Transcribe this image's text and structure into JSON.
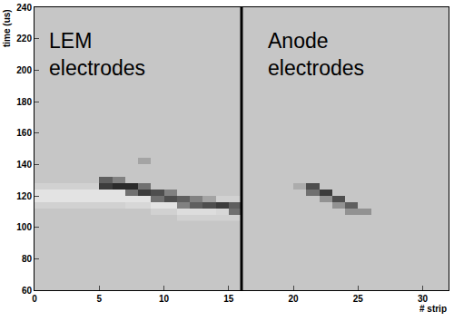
{
  "chart_data": {
    "type": "heatmap",
    "xlabel": "# strip",
    "ylabel": "time (us)",
    "xlim": [
      0,
      32
    ],
    "xticks": [
      0,
      5,
      10,
      15,
      20,
      25,
      30
    ],
    "ylim": [
      60,
      240
    ],
    "yticks": [
      60,
      80,
      100,
      120,
      140,
      160,
      180,
      200,
      220,
      240
    ],
    "zlim": [
      -1,
      1
    ],
    "xbins": [
      0,
      1,
      2,
      3,
      4,
      5,
      6,
      7,
      8,
      9,
      10,
      11,
      12,
      13,
      14,
      15,
      16,
      17,
      18,
      19,
      20,
      21,
      22,
      23,
      24,
      25,
      26,
      27,
      28,
      29,
      30,
      31,
      32
    ],
    "ybins": [
      104,
      108,
      112,
      116,
      120,
      124,
      128,
      132,
      136,
      140,
      144,
      148
    ],
    "cells": [
      [
        0,
        0,
        0,
        0,
        0,
        0,
        0,
        0,
        0,
        0,
        0,
        -0.2,
        -0.2,
        -0.2,
        -0.2,
        -0.2,
        0,
        0,
        0,
        0,
        0,
        0,
        0,
        0,
        0,
        0,
        0,
        0,
        0,
        0,
        0,
        0
      ],
      [
        0,
        0,
        0,
        0,
        0,
        0,
        0,
        0,
        0,
        -0.2,
        -0.2,
        -0.4,
        -0.4,
        -0.4,
        -0.3,
        0.5,
        0,
        0,
        0,
        0,
        0,
        0,
        0,
        0,
        0.3,
        0.3,
        0,
        0,
        0,
        0,
        0,
        0
      ],
      [
        -0.2,
        -0.2,
        -0.2,
        -0.2,
        -0.2,
        -0.2,
        -0.2,
        -0.3,
        -0.3,
        -0.5,
        -0.5,
        0.4,
        0.6,
        0.7,
        0.8,
        0.6,
        0,
        0,
        0,
        0,
        0,
        0,
        0,
        0.3,
        0.6,
        0,
        0,
        0,
        0,
        0,
        0,
        0
      ],
      [
        -0.5,
        -0.5,
        -0.5,
        -0.5,
        -0.5,
        -0.5,
        -0.5,
        -0.5,
        -0.5,
        0.5,
        0.7,
        0.6,
        0.4,
        0.2,
        -0.2,
        -0.2,
        0,
        0,
        0,
        0,
        0,
        0,
        0.3,
        0.7,
        0,
        0,
        0,
        0,
        0,
        0,
        0,
        0
      ],
      [
        -0.5,
        -0.5,
        -0.5,
        -0.5,
        -0.5,
        -0.5,
        -0.5,
        0.5,
        0.8,
        0.7,
        0.4,
        0,
        0,
        0,
        0,
        0,
        0,
        0,
        0,
        0,
        0,
        0.5,
        0.8,
        0,
        0,
        0,
        0,
        0,
        0,
        0,
        0,
        0
      ],
      [
        -0.2,
        -0.2,
        -0.2,
        -0.2,
        -0.2,
        0.8,
        0.9,
        0.9,
        0.5,
        0,
        0,
        0,
        0,
        0,
        0,
        0,
        0,
        0,
        0,
        0,
        0.15,
        0.7,
        0,
        0,
        0,
        0,
        0,
        0,
        0,
        0,
        0,
        0
      ],
      [
        0,
        0,
        0,
        0,
        0,
        0.6,
        0.4,
        0,
        0,
        0,
        0,
        0,
        0,
        0,
        0,
        0,
        0,
        0,
        0,
        0,
        0,
        0,
        0,
        0,
        0,
        0,
        0,
        0,
        0,
        0,
        0,
        0
      ],
      [
        0,
        0,
        0,
        0,
        0,
        0,
        0,
        0,
        0,
        0,
        0,
        0,
        0,
        0,
        0,
        0,
        0,
        0,
        0,
        0,
        0,
        0,
        0,
        0,
        0,
        0,
        0,
        0,
        0,
        0,
        0,
        0
      ],
      [
        0,
        0,
        0,
        0,
        0,
        0,
        0,
        0,
        0,
        0,
        0,
        0,
        0,
        0,
        0,
        0,
        0,
        0,
        0,
        0,
        0,
        0,
        0,
        0,
        0,
        0,
        0,
        0,
        0,
        0,
        0,
        0
      ],
      [
        0,
        0,
        0,
        0,
        0,
        0,
        0,
        0,
        0.2,
        0,
        0,
        0,
        0,
        0,
        0,
        0,
        0,
        0,
        0,
        0,
        0,
        0,
        0,
        0,
        0,
        0,
        0,
        0,
        0,
        0,
        0,
        0
      ],
      [
        0,
        0,
        0,
        0,
        0,
        0,
        0,
        0,
        0,
        0,
        0,
        0,
        0,
        0,
        0,
        0,
        0,
        0,
        0,
        0,
        0,
        0,
        0,
        0,
        0,
        0,
        0,
        0,
        0,
        0,
        0,
        0
      ]
    ],
    "divider": 16,
    "annotations": [
      [
        "LEM",
        "electrodes"
      ],
      [
        "Anode",
        "electrodes"
      ]
    ]
  }
}
